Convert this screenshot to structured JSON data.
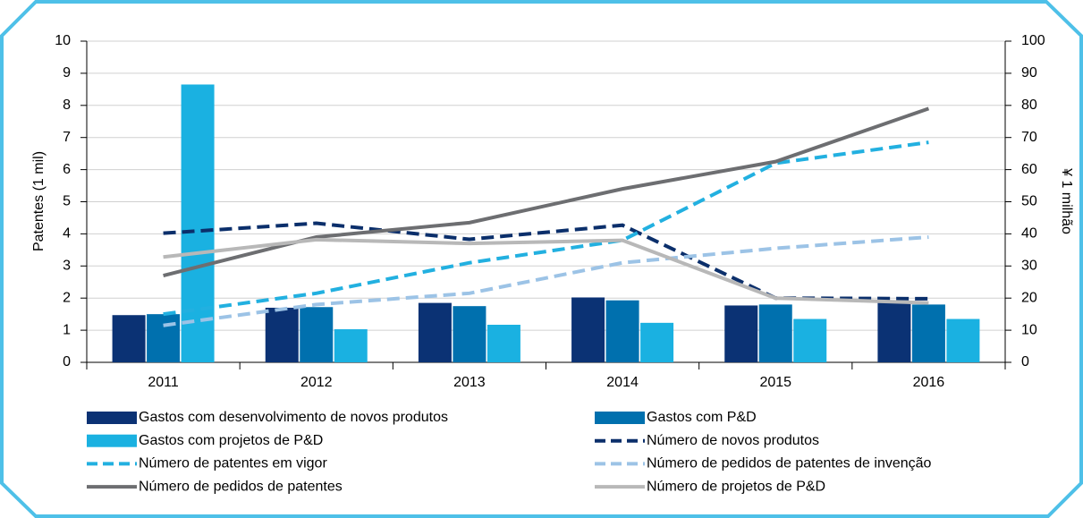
{
  "chart_data": {
    "type": "bar-line",
    "ylabel": "Patentes (1 mil)",
    "y2label": "¥ 1 milhão",
    "categories": [
      "2011",
      "2012",
      "2013",
      "2014",
      "2015",
      "2016"
    ],
    "ylim": [
      0,
      10
    ],
    "yticks": [
      0,
      1,
      2,
      3,
      4,
      5,
      6,
      7,
      8,
      9,
      10
    ],
    "y2lim": [
      0,
      100
    ],
    "y2ticks": [
      0,
      10,
      20,
      30,
      40,
      50,
      60,
      70,
      80,
      90,
      100
    ],
    "grid": true,
    "series": [
      {
        "name": "Gastos com desenvolvimento de novos produtos",
        "type": "bar",
        "axis": "y2",
        "color": "#0b3274",
        "values": [
          14.7,
          17,
          18.5,
          20.2,
          17.7,
          19
        ]
      },
      {
        "name": "Gastos com P&D",
        "type": "bar",
        "axis": "y2",
        "color": "#0070ae",
        "values": [
          15,
          17.2,
          17.5,
          19.3,
          18,
          18
        ]
      },
      {
        "name": "Gastos com projetos de P&D",
        "type": "bar",
        "axis": "y2",
        "color": "#1ab1e1",
        "values": [
          86.5,
          10.3,
          11.7,
          12.3,
          13.5,
          13.5
        ]
      },
      {
        "name": "Número de novos produtos",
        "type": "line",
        "dashed": true,
        "color": "#0b2f6b",
        "values": [
          4.02,
          4.33,
          3.83,
          4.27,
          2.0,
          1.98
        ]
      },
      {
        "name": "Número de patentes em vigor",
        "type": "line",
        "dashed": true,
        "color": "#22b0e0",
        "values": [
          1.5,
          2.15,
          3.1,
          3.8,
          6.2,
          6.85
        ]
      },
      {
        "name": "Número de pedidos de patentes de invenção",
        "type": "line",
        "dashed": true,
        "color": "#9cc3e6",
        "values": [
          1.15,
          1.8,
          2.15,
          3.1,
          3.55,
          3.9
        ]
      },
      {
        "name": "Número de pedidos de patentes",
        "type": "line",
        "dashed": false,
        "color": "#6d6e71",
        "values": [
          2.7,
          3.9,
          4.35,
          5.4,
          6.25,
          7.9
        ]
      },
      {
        "name": "Número de projetos de P&D",
        "type": "line",
        "dashed": false,
        "color": "#b8b8b8",
        "values": [
          3.28,
          3.82,
          3.7,
          3.8,
          2.0,
          1.85
        ]
      }
    ]
  }
}
